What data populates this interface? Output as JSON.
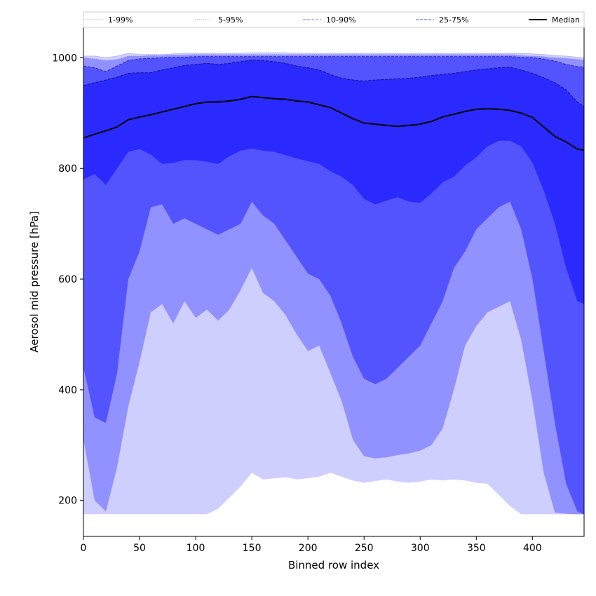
{
  "chart_data": {
    "type": "area",
    "xlabel": "Binned row index",
    "ylabel": "Aerosol mid pressure [hPa]",
    "xlim": [
      0,
      446
    ],
    "ylim": [
      135,
      1055
    ],
    "xticks": [
      0,
      50,
      100,
      150,
      200,
      250,
      300,
      350,
      400
    ],
    "yticks": [
      200,
      400,
      600,
      800,
      1000
    ],
    "grid": false,
    "legend_position": "top",
    "legend": [
      {
        "label": "1-99%",
        "color": "#cfcfff",
        "style": "solid"
      },
      {
        "label": "5-95%",
        "color": "#9b9bff",
        "style": "dotted"
      },
      {
        "label": "10-90%",
        "color": "#7b7bff",
        "style": "dashed"
      },
      {
        "label": "25-75%",
        "color": "#5050ff",
        "style": "dashed"
      },
      {
        "label": "Median",
        "color": "#000000",
        "style": "solid"
      }
    ],
    "colors": {
      "band_1_99": "#cfcfff",
      "band_5_95": "#9191ff",
      "band_10_90": "#5454ff",
      "band_25_75": "#2a2aff",
      "median": "#000000"
    },
    "x": [
      0,
      10,
      20,
      30,
      40,
      50,
      60,
      70,
      80,
      90,
      100,
      110,
      120,
      130,
      140,
      150,
      160,
      170,
      180,
      190,
      200,
      210,
      220,
      230,
      240,
      250,
      260,
      270,
      280,
      290,
      300,
      310,
      320,
      330,
      340,
      350,
      360,
      370,
      380,
      390,
      400,
      410,
      420,
      430,
      440,
      446
    ],
    "series": [
      {
        "name": "Median",
        "values": [
          855,
          862,
          868,
          875,
          888,
          893,
          897,
          902,
          907,
          912,
          917,
          920,
          920,
          922,
          925,
          930,
          928,
          926,
          925,
          922,
          920,
          915,
          910,
          900,
          890,
          882,
          880,
          878,
          876,
          878,
          880,
          885,
          893,
          898,
          903,
          907,
          908,
          907,
          905,
          900,
          892,
          875,
          858,
          848,
          835,
          833
        ]
      },
      {
        "name": "1-99%",
        "lower": [
          175,
          175,
          175,
          175,
          175,
          175,
          175,
          175,
          175,
          175,
          175,
          175,
          185,
          205,
          225,
          250,
          238,
          240,
          242,
          238,
          240,
          243,
          250,
          243,
          236,
          232,
          235,
          238,
          234,
          232,
          234,
          238,
          236,
          238,
          236,
          232,
          230,
          210,
          190,
          175,
          175,
          175,
          175,
          175,
          175,
          175
        ],
        "upper": [
          1003,
          1003,
          1000,
          1003,
          1008,
          1006,
          1006,
          1006,
          1007,
          1008,
          1008,
          1008,
          1008,
          1008,
          1008,
          1009,
          1009,
          1009,
          1009,
          1008,
          1008,
          1008,
          1008,
          1008,
          1008,
          1008,
          1008,
          1008,
          1008,
          1008,
          1008,
          1008,
          1008,
          1008,
          1008,
          1008,
          1008,
          1008,
          1008,
          1008,
          1007,
          1006,
          1004,
          1003,
          1001,
          1000
        ]
      },
      {
        "name": "5-95%",
        "lower": [
          310,
          200,
          180,
          260,
          370,
          450,
          540,
          555,
          520,
          560,
          530,
          545,
          525,
          545,
          580,
          620,
          575,
          560,
          535,
          500,
          470,
          480,
          430,
          380,
          310,
          280,
          276,
          278,
          282,
          285,
          290,
          300,
          330,
          400,
          480,
          515,
          540,
          550,
          560,
          490,
          380,
          250,
          178,
          176,
          175,
          175
        ],
        "upper": [
          1000,
          998,
          995,
          997,
          1003,
          1003,
          1004,
          1004,
          1005,
          1005,
          1006,
          1006,
          1006,
          1006,
          1006,
          1006,
          1006,
          1006,
          1006,
          1006,
          1006,
          1006,
          1006,
          1006,
          1006,
          1006,
          1006,
          1006,
          1006,
          1006,
          1006,
          1006,
          1006,
          1006,
          1006,
          1006,
          1006,
          1006,
          1006,
          1004,
          1003,
          1002,
          1000,
          999,
          997,
          996
        ]
      },
      {
        "name": "10-90%",
        "lower": [
          440,
          350,
          340,
          430,
          600,
          650,
          730,
          735,
          700,
          710,
          700,
          690,
          680,
          690,
          700,
          740,
          715,
          700,
          670,
          640,
          610,
          600,
          570,
          520,
          460,
          420,
          410,
          420,
          440,
          460,
          480,
          520,
          560,
          620,
          650,
          690,
          710,
          730,
          740,
          690,
          600,
          470,
          340,
          230,
          180,
          175
        ],
        "upper": [
          985,
          982,
          975,
          985,
          995,
          998,
          999,
          1000,
          1001,
          1001,
          1002,
          1002,
          1002,
          1002,
          1002,
          1002,
          1002,
          1002,
          1002,
          1002,
          1002,
          1002,
          1002,
          1002,
          1002,
          1002,
          1002,
          1002,
          1002,
          1002,
          1002,
          1002,
          1002,
          1002,
          1002,
          1002,
          1002,
          1002,
          1002,
          1001,
          1000,
          998,
          994,
          988,
          984,
          983
        ]
      },
      {
        "name": "25-75%",
        "lower": [
          780,
          790,
          770,
          800,
          830,
          835,
          825,
          808,
          810,
          815,
          815,
          812,
          808,
          822,
          832,
          836,
          832,
          830,
          824,
          818,
          813,
          808,
          795,
          785,
          770,
          745,
          735,
          742,
          748,
          740,
          738,
          755,
          775,
          785,
          805,
          820,
          840,
          850,
          850,
          840,
          810,
          760,
          700,
          620,
          560,
          555
        ],
        "upper": [
          950,
          955,
          960,
          965,
          972,
          973,
          973,
          978,
          982,
          986,
          988,
          990,
          988,
          990,
          993,
          996,
          995,
          993,
          990,
          985,
          982,
          978,
          970,
          963,
          960,
          958,
          960,
          961,
          962,
          963,
          965,
          968,
          970,
          972,
          975,
          978,
          980,
          982,
          983,
          978,
          972,
          964,
          955,
          942,
          920,
          912
        ]
      }
    ]
  }
}
